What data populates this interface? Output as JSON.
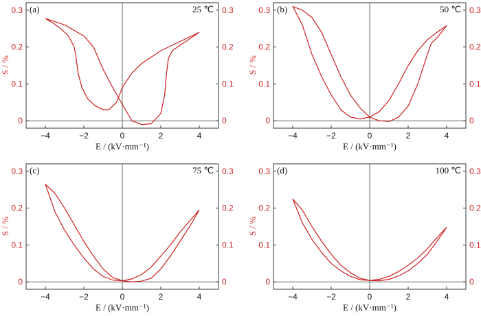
{
  "colors": {
    "curve": "#cc1f1f",
    "axis": "#333333",
    "ytick": "#cc1f1f"
  },
  "chart_data": [
    {
      "type": "line",
      "panel": "(a)",
      "temperature": "25 ℃",
      "xlabel": "E / (kV·mm⁻¹)",
      "ylabel": "S / %",
      "xlim": [
        -5,
        5
      ],
      "ylim": [
        -0.02,
        0.32
      ],
      "xticks": [
        -4,
        -2,
        0,
        2,
        4
      ],
      "yticks": [
        0,
        0.1,
        0.2,
        0.3
      ],
      "series": [
        {
          "x": [
            4.0,
            3.0,
            2.0,
            1.0,
            0.5,
            0.0,
            -0.3,
            -0.7,
            -1.0,
            -1.4,
            -1.8,
            -2.1,
            -2.3,
            -2.4,
            -2.5,
            -2.8,
            -3.2,
            -3.6,
            -4.0
          ],
          "y": [
            0.24,
            0.215,
            0.19,
            0.155,
            0.13,
            0.09,
            0.05,
            0.03,
            0.03,
            0.04,
            0.06,
            0.09,
            0.13,
            0.17,
            0.2,
            0.23,
            0.25,
            0.265,
            0.277
          ]
        },
        {
          "x": [
            -4.0,
            -3.0,
            -2.0,
            -1.5,
            -1.0,
            -0.5,
            0.0,
            0.5,
            1.0,
            1.5,
            2.0,
            2.2,
            2.3,
            2.4,
            2.6,
            3.0,
            3.5,
            4.0
          ],
          "y": [
            0.277,
            0.26,
            0.23,
            0.2,
            0.14,
            0.09,
            0.045,
            0.0,
            -0.01,
            -0.008,
            0.02,
            0.07,
            0.13,
            0.17,
            0.19,
            0.205,
            0.222,
            0.24
          ]
        }
      ]
    },
    {
      "type": "line",
      "panel": "(b)",
      "temperature": "50 ℃",
      "xlabel": "E / (kV·mm⁻¹)",
      "ylabel": "S / %",
      "xlim": [
        -5,
        5
      ],
      "ylim": [
        -0.02,
        0.32
      ],
      "xticks": [
        -4,
        -2,
        0,
        2,
        4
      ],
      "yticks": [
        0,
        0.1,
        0.2,
        0.3
      ],
      "series": [
        {
          "x": [
            4.0,
            3.5,
            3.0,
            2.5,
            2.0,
            1.5,
            1.0,
            0.5,
            0.0,
            -0.5,
            -1.0,
            -1.5,
            -2.0,
            -2.5,
            -3.0,
            -3.5,
            -4.0
          ],
          "y": [
            0.258,
            0.24,
            0.22,
            0.19,
            0.15,
            0.1,
            0.055,
            0.025,
            0.01,
            0.005,
            0.01,
            0.03,
            0.07,
            0.12,
            0.18,
            0.26,
            0.31
          ]
        },
        {
          "x": [
            -4.0,
            -3.5,
            -3.0,
            -2.5,
            -2.0,
            -1.5,
            -1.0,
            -0.5,
            0.0,
            0.5,
            1.0,
            1.5,
            2.0,
            2.5,
            3.0,
            3.2,
            3.5,
            4.0
          ],
          "y": [
            0.31,
            0.3,
            0.28,
            0.24,
            0.18,
            0.12,
            0.07,
            0.035,
            0.01,
            0.0,
            -0.002,
            0.01,
            0.04,
            0.1,
            0.18,
            0.21,
            0.225,
            0.258
          ]
        }
      ]
    },
    {
      "type": "line",
      "panel": "(c)",
      "temperature": "75 ℃",
      "xlabel": "E / (kV·mm⁻¹)",
      "ylabel": "S / %",
      "xlim": [
        -5,
        5
      ],
      "ylim": [
        -0.02,
        0.32
      ],
      "xticks": [
        -4,
        -2,
        0,
        2,
        4
      ],
      "yticks": [
        0,
        0.1,
        0.2,
        0.3
      ],
      "series": [
        {
          "x": [
            4.0,
            3.5,
            3.0,
            2.5,
            2.0,
            1.5,
            1.0,
            0.5,
            0.0,
            -0.5,
            -1.0,
            -1.5,
            -2.0,
            -2.5,
            -3.0,
            -3.5,
            -4.0
          ],
          "y": [
            0.195,
            0.165,
            0.135,
            0.1,
            0.07,
            0.04,
            0.02,
            0.008,
            0.003,
            0.005,
            0.015,
            0.035,
            0.065,
            0.1,
            0.14,
            0.19,
            0.265
          ]
        },
        {
          "x": [
            -4.0,
            -3.5,
            -3.0,
            -2.5,
            -2.0,
            -1.5,
            -1.0,
            -0.5,
            0.0,
            0.5,
            1.0,
            1.5,
            2.0,
            2.5,
            3.0,
            3.5,
            4.0
          ],
          "y": [
            0.265,
            0.24,
            0.2,
            0.155,
            0.11,
            0.07,
            0.035,
            0.012,
            0.003,
            0.0,
            0.002,
            0.01,
            0.035,
            0.07,
            0.11,
            0.15,
            0.195
          ]
        }
      ]
    },
    {
      "type": "line",
      "panel": "(d)",
      "temperature": "100 ℃",
      "xlabel": "E / (kV·mm⁻¹)",
      "ylabel": "S / %",
      "xlim": [
        -5,
        5
      ],
      "ylim": [
        -0.02,
        0.32
      ],
      "xticks": [
        -4,
        -2,
        0,
        2,
        4
      ],
      "yticks": [
        0,
        0.1,
        0.2,
        0.3
      ],
      "series": [
        {
          "x": [
            4.0,
            3.5,
            3.0,
            2.5,
            2.0,
            1.5,
            1.0,
            0.5,
            0.0,
            -0.5,
            -1.0,
            -1.5,
            -2.0,
            -2.5,
            -3.0,
            -3.5,
            -4.0
          ],
          "y": [
            0.148,
            0.12,
            0.09,
            0.065,
            0.045,
            0.028,
            0.015,
            0.007,
            0.004,
            0.006,
            0.015,
            0.03,
            0.05,
            0.08,
            0.115,
            0.16,
            0.225
          ]
        },
        {
          "x": [
            -4.0,
            -3.5,
            -3.0,
            -2.5,
            -2.0,
            -1.5,
            -1.0,
            -0.5,
            0.0,
            0.5,
            1.0,
            1.5,
            2.0,
            2.5,
            3.0,
            3.5,
            4.0
          ],
          "y": [
            0.225,
            0.195,
            0.15,
            0.11,
            0.075,
            0.045,
            0.025,
            0.01,
            0.004,
            0.003,
            0.007,
            0.016,
            0.03,
            0.05,
            0.075,
            0.11,
            0.148
          ]
        }
      ]
    }
  ]
}
